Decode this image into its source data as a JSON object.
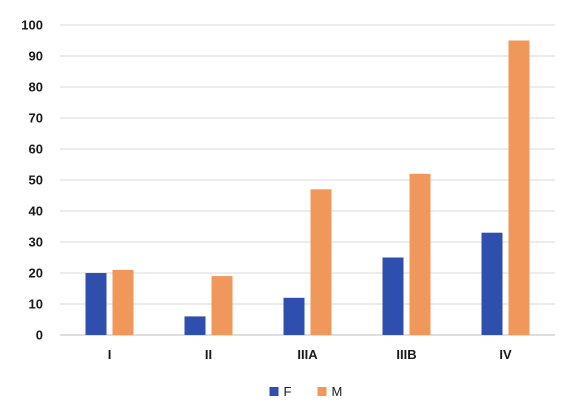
{
  "chart_data": {
    "type": "bar",
    "title": "",
    "xlabel": "",
    "ylabel": "",
    "categories": [
      "I",
      "II",
      "IIIA",
      "IIIB",
      "IV"
    ],
    "series": [
      {
        "name": "F",
        "color": "#2e4fae",
        "values": [
          20,
          6,
          12,
          25,
          33
        ]
      },
      {
        "name": "M",
        "color": "#f0975b",
        "values": [
          21,
          19,
          47,
          52,
          95
        ]
      }
    ],
    "ylim": [
      0,
      100
    ],
    "yticks": [
      "0",
      "10",
      "20",
      "30",
      "40",
      "50",
      "60",
      "70",
      "80",
      "90",
      "100"
    ],
    "grid": true,
    "legend_position": "bottom"
  }
}
